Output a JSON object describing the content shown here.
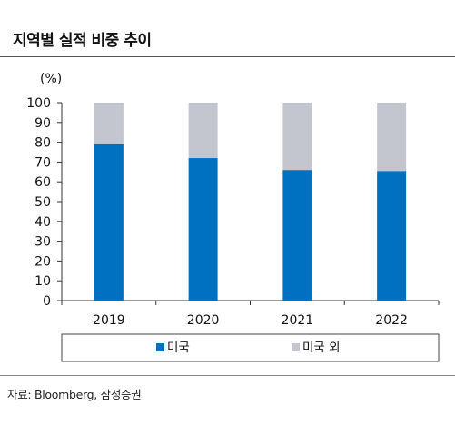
{
  "title": "지역별 실적 비중 추이",
  "source": "자료: Bloomberg, 삼성증권",
  "chart_data": {
    "type": "bar",
    "stacked": true,
    "unit_label": "(%)",
    "categories": [
      "2019",
      "2020",
      "2021",
      "2022"
    ],
    "series": [
      {
        "name": "미국",
        "values": [
          79,
          72,
          66,
          65.5
        ],
        "color": "#0070c0"
      },
      {
        "name": "미국 외",
        "values": [
          21,
          28,
          34,
          34.5
        ],
        "color": "#c3c6cf"
      }
    ],
    "ylim": [
      0,
      100
    ],
    "yticks": [
      0,
      10,
      20,
      30,
      40,
      50,
      60,
      70,
      80,
      90,
      100
    ],
    "grid": false,
    "legend_position": "bottom"
  }
}
